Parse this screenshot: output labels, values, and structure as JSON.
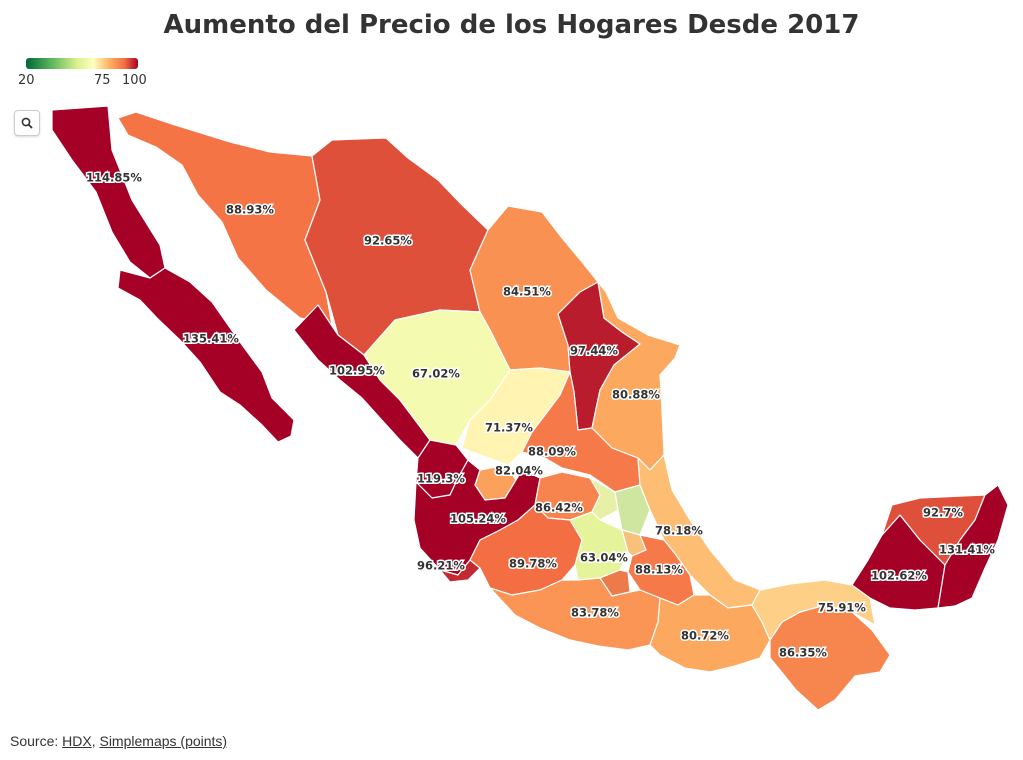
{
  "title": "Aumento del Precio de los Hogares Desde 2017",
  "legend": {
    "ticks": [
      "20",
      "75",
      "100"
    ]
  },
  "search": {
    "icon": "search-icon"
  },
  "source": {
    "prefix": "Source: ",
    "link1": "HDX",
    "sep": ", ",
    "link2": "Simplemaps (points)"
  },
  "regions": [
    {
      "id": "baja-california",
      "label": "114.85%",
      "value": 114.85
    },
    {
      "id": "baja-california-sur",
      "label": "135.41%",
      "value": 135.41
    },
    {
      "id": "sonora",
      "label": "88.93%",
      "value": 88.93
    },
    {
      "id": "chihuahua",
      "label": "92.65%",
      "value": 92.65
    },
    {
      "id": "coahuila",
      "label": "84.51%",
      "value": 84.51
    },
    {
      "id": "nuevo-leon",
      "label": "97.44%",
      "value": 97.44
    },
    {
      "id": "tamaulipas",
      "label": "80.88%",
      "value": 80.88
    },
    {
      "id": "sinaloa",
      "label": "102.95%",
      "value": 102.95
    },
    {
      "id": "durango",
      "label": "67.02%",
      "value": 67.02
    },
    {
      "id": "zacatecas",
      "label": "71.37%",
      "value": 71.37
    },
    {
      "id": "san-luis-potosi",
      "label": "88.09%",
      "value": 88.09
    },
    {
      "id": "nayarit",
      "label": "119.3%",
      "value": 119.3
    },
    {
      "id": "aguascalientes",
      "label": "82.04%",
      "value": 82.04
    },
    {
      "id": "jalisco",
      "label": "105.24%",
      "value": 105.24
    },
    {
      "id": "guanajuato",
      "label": "86.42%",
      "value": 86.42
    },
    {
      "id": "veracruz",
      "label": "78.18%",
      "value": 78.18
    },
    {
      "id": "colima",
      "label": "96.21%",
      "value": 96.21
    },
    {
      "id": "michoacan",
      "label": "89.78%",
      "value": 89.78
    },
    {
      "id": "mexico",
      "label": "63.04%",
      "value": 63.04
    },
    {
      "id": "puebla",
      "label": "88.13%",
      "value": 88.13
    },
    {
      "id": "guerrero",
      "label": "83.78%",
      "value": 83.78
    },
    {
      "id": "oaxaca",
      "label": "80.72%",
      "value": 80.72
    },
    {
      "id": "chiapas",
      "label": "86.35%",
      "value": 86.35
    },
    {
      "id": "tabasco",
      "label": "75.91%",
      "value": 75.91
    },
    {
      "id": "campeche",
      "label": "102.62%",
      "value": 102.62
    },
    {
      "id": "yucatan",
      "label": "92.7%",
      "value": 92.7
    },
    {
      "id": "quintana-roo",
      "label": "131.41%",
      "value": 131.41
    }
  ]
}
